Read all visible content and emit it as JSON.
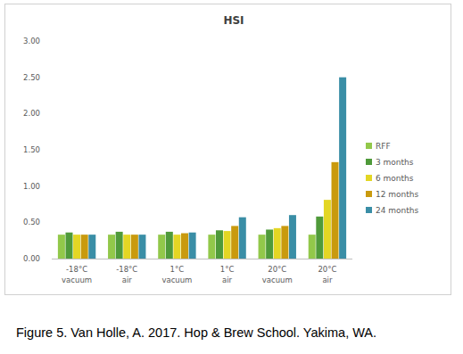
{
  "chart_data": {
    "type": "bar",
    "title": "HSI",
    "categories": [
      "-18°C vacuum",
      "-18°C air",
      "1°C vacuum",
      "1°C air",
      "20°C vacuum",
      "20°C air"
    ],
    "series": [
      {
        "name": "RFF",
        "color": "#92c84a",
        "values": [
          0.33,
          0.33,
          0.33,
          0.33,
          0.33,
          0.33
        ]
      },
      {
        "name": "3 months",
        "color": "#4f9a3a",
        "values": [
          0.36,
          0.37,
          0.37,
          0.39,
          0.4,
          0.58
        ]
      },
      {
        "name": "6 months",
        "color": "#e3d624",
        "values": [
          0.33,
          0.33,
          0.33,
          0.38,
          0.42,
          0.81
        ]
      },
      {
        "name": "12 months",
        "color": "#c99a0e",
        "values": [
          0.33,
          0.33,
          0.35,
          0.45,
          0.45,
          1.33
        ]
      },
      {
        "name": "24 months",
        "color": "#3a8ea6",
        "values": [
          0.33,
          0.33,
          0.36,
          0.57,
          0.6,
          2.5
        ]
      }
    ],
    "ylim": [
      0,
      3
    ],
    "yticks": [
      {
        "value": 0,
        "label": "0.00"
      },
      {
        "value": 0.5,
        "label": "0.50"
      },
      {
        "value": 1,
        "label": "1.00"
      },
      {
        "value": 1.5,
        "label": "1.50"
      },
      {
        "value": 2,
        "label": "2.00"
      },
      {
        "value": 2.5,
        "label": "2.50"
      },
      {
        "value": 3,
        "label": "3.00"
      }
    ],
    "grid": false,
    "legend": "right"
  },
  "caption": "Figure 5. Van Holle, A. 2017. Hop & Brew School. Yakima, WA."
}
